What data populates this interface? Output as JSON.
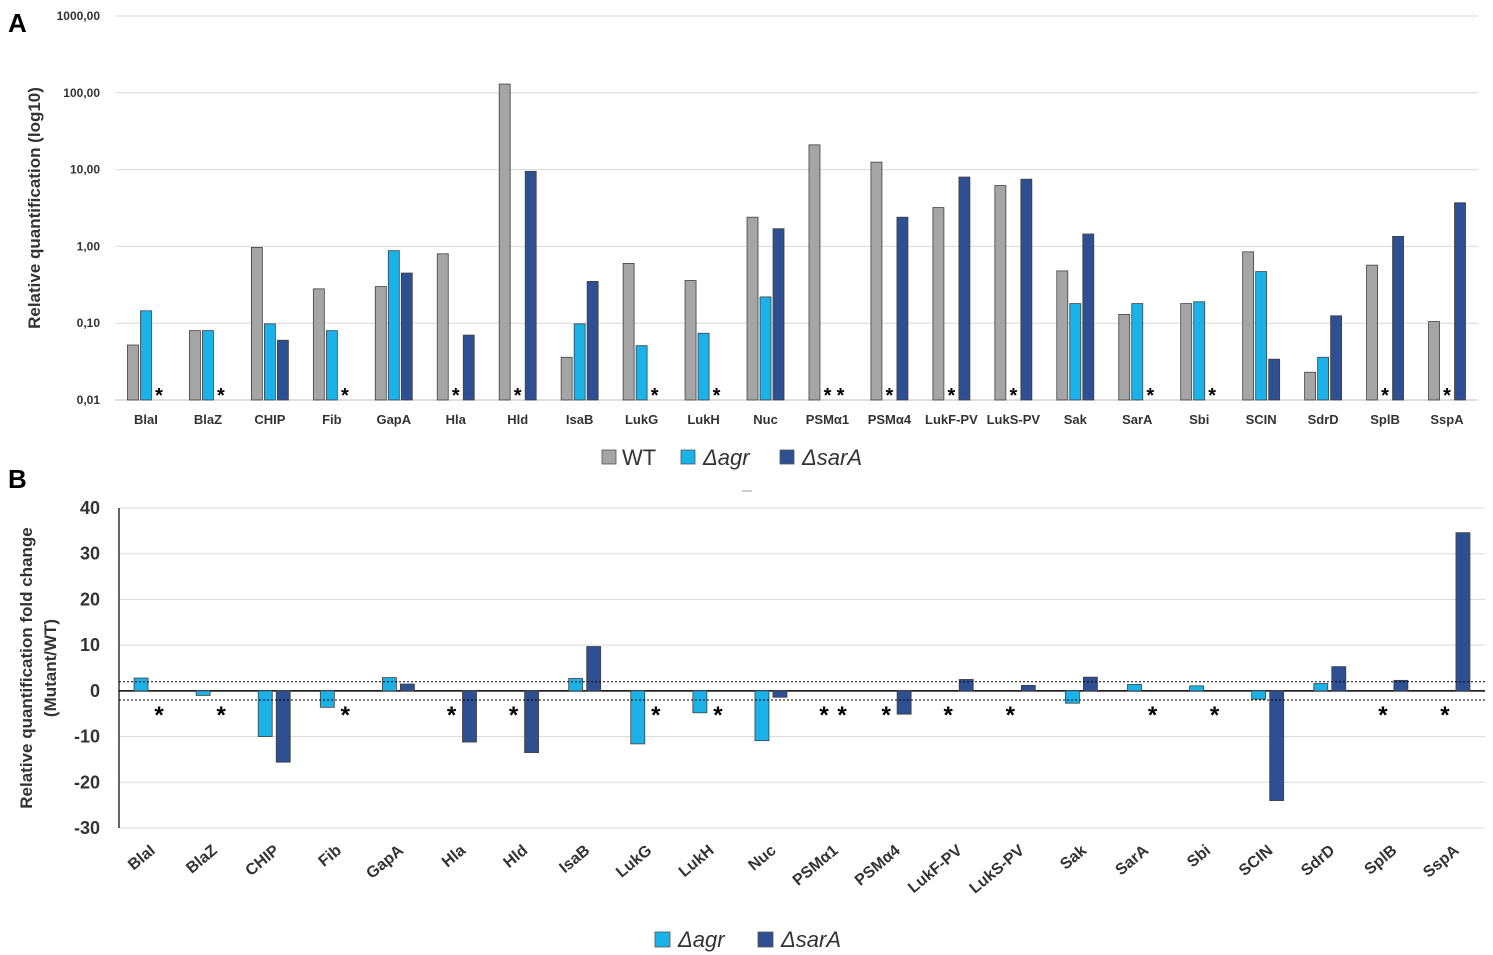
{
  "panels": {
    "a": "A",
    "b": "B"
  },
  "colors": {
    "WT": "#a6a5a5",
    "agr": "#1ab2e8",
    "sarA": "#2e4f91"
  },
  "chart_data": [
    {
      "type": "bar",
      "scale": "log10",
      "ylabel": "Relative quantification (log10)",
      "yticks": [
        "0,01",
        "0,10",
        "1,00",
        "10,00",
        "100,00",
        "1000,00"
      ],
      "ylim": [
        0.01,
        1000
      ],
      "legend_position": "bottom-center",
      "categories": [
        "BlaI",
        "BlaZ",
        "CHIP",
        "Fib",
        "GapA",
        "Hla",
        "Hld",
        "IsaB",
        "LukG",
        "LukH",
        "Nuc",
        "PSMα1",
        "PSMα4",
        "LukF-PV",
        "LukS-PV",
        "Sak",
        "SarA",
        "Sbi",
        "SCIN",
        "SdrD",
        "SplB",
        "SspA"
      ],
      "series": [
        {
          "name": "WT",
          "key": "WT",
          "values": [
            0.052,
            0.08,
            0.97,
            0.28,
            0.3,
            0.8,
            130,
            0.036,
            0.6,
            0.36,
            2.4,
            21,
            12.5,
            3.2,
            6.2,
            0.48,
            0.13,
            0.18,
            0.85,
            0.023,
            0.57,
            0.105
          ]
        },
        {
          "name": "Δagr",
          "key": "agr",
          "values": [
            0.145,
            0.08,
            0.098,
            0.08,
            0.88,
            null,
            null,
            0.098,
            0.051,
            0.074,
            0.22,
            null,
            null,
            null,
            null,
            0.18,
            0.18,
            0.19,
            0.47,
            0.036,
            null,
            null
          ]
        },
        {
          "name": "ΔsarA",
          "key": "sarA",
          "values": [
            null,
            null,
            0.06,
            null,
            0.45,
            0.07,
            9.5,
            0.35,
            null,
            null,
            1.7,
            null,
            2.4,
            8.0,
            7.5,
            1.45,
            null,
            null,
            0.034,
            0.125,
            1.35,
            3.7
          ]
        }
      ],
      "asterisks": [
        [
          0,
          2
        ],
        [
          1,
          2
        ],
        [
          3,
          2
        ],
        [
          5,
          1
        ],
        [
          6,
          1
        ],
        [
          8,
          2
        ],
        [
          9,
          2
        ],
        [
          11,
          1
        ],
        [
          11,
          2
        ],
        [
          12,
          1
        ],
        [
          13,
          1
        ],
        [
          14,
          1
        ],
        [
          16,
          2
        ],
        [
          17,
          2
        ],
        [
          20,
          1
        ],
        [
          21,
          1
        ]
      ],
      "asterisk_symbol": "*"
    },
    {
      "type": "bar",
      "ylabel": [
        "Relative quantification fold change",
        "(Mutant/WT)"
      ],
      "yticks": [
        -30,
        -20,
        -10,
        0,
        10,
        20,
        30,
        40
      ],
      "ylim": [
        -30,
        40
      ],
      "threshold_lines": [
        2,
        -2
      ],
      "legend_position": "bottom-center",
      "categories": [
        "BlaI",
        "BlaZ",
        "CHIP",
        "Fib",
        "GapA",
        "Hla",
        "Hld",
        "IsaB",
        "LukG",
        "LukH",
        "Nuc",
        "PSMα1",
        "PSMα4",
        "LukF-PV",
        "LukS-PV",
        "Sak",
        "SarA",
        "Sbi",
        "SCIN",
        "SdrD",
        "SplB",
        "SspA"
      ],
      "series": [
        {
          "name": "Δagr",
          "key": "agr",
          "values": [
            2.8,
            -1.0,
            -10.0,
            -3.6,
            2.9,
            null,
            null,
            2.7,
            -11.6,
            -4.8,
            -10.9,
            null,
            null,
            null,
            null,
            -2.7,
            1.4,
            1.1,
            -1.8,
            1.6,
            null,
            null
          ]
        },
        {
          "name": "ΔsarA",
          "key": "sarA",
          "values": [
            null,
            null,
            -15.6,
            null,
            1.5,
            -11.2,
            -13.5,
            9.7,
            null,
            null,
            -1.4,
            null,
            -5.1,
            2.5,
            1.2,
            3.0,
            null,
            null,
            -24.0,
            5.3,
            2.3,
            34.6
          ]
        }
      ],
      "asterisks": [
        [
          0,
          1
        ],
        [
          1,
          1
        ],
        [
          3,
          1
        ],
        [
          5,
          0
        ],
        [
          6,
          0
        ],
        [
          8,
          1
        ],
        [
          9,
          1
        ],
        [
          11,
          0
        ],
        [
          11,
          1
        ],
        [
          12,
          0
        ],
        [
          13,
          0
        ],
        [
          14,
          0
        ],
        [
          16,
          1
        ],
        [
          17,
          1
        ],
        [
          20,
          0
        ],
        [
          21,
          0
        ]
      ],
      "asterisk_symbol": "*"
    }
  ]
}
